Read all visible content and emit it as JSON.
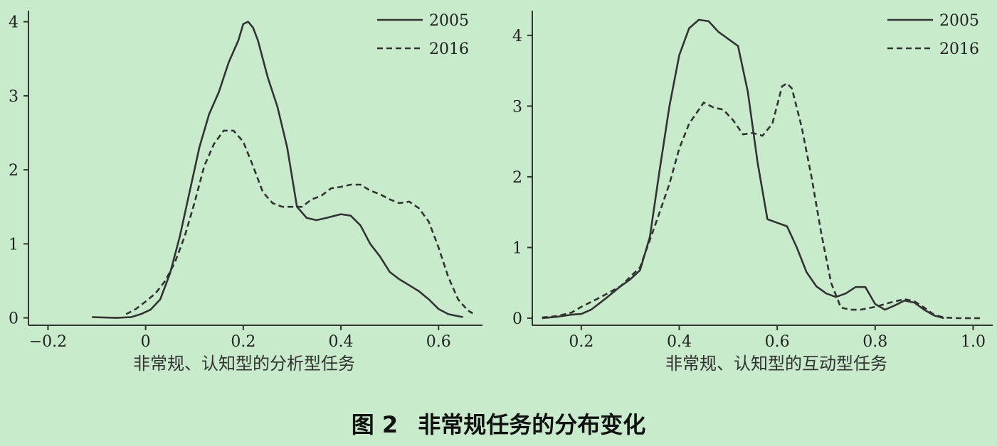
{
  "figure": {
    "caption_num": "图 2",
    "caption_text": "非常规任务的分布变化"
  },
  "chart_data": [
    {
      "type": "line",
      "xlabel": "非常规、认知型的分析型任务",
      "ylabel": "",
      "xlim": [
        -0.24,
        0.69
      ],
      "ylim": [
        -0.1,
        4.15
      ],
      "xticks": [
        -0.2,
        0,
        0.2,
        0.4,
        0.6
      ],
      "xtick_labels": [
        "−0.2",
        "0",
        "0.2",
        "0.4",
        "0.6"
      ],
      "yticks": [
        0,
        1,
        2,
        3,
        4
      ],
      "ytick_labels": [
        "0",
        "1",
        "2",
        "3",
        "4"
      ],
      "legend": "top-right",
      "grid": false,
      "series": [
        {
          "name": "2005",
          "style": "solid",
          "points": [
            [
              -0.11,
              0.01
            ],
            [
              -0.06,
              0.0
            ],
            [
              -0.03,
              0.01
            ],
            [
              -0.01,
              0.05
            ],
            [
              0.01,
              0.11
            ],
            [
              0.03,
              0.25
            ],
            [
              0.05,
              0.6
            ],
            [
              0.07,
              1.1
            ],
            [
              0.09,
              1.7
            ],
            [
              0.11,
              2.3
            ],
            [
              0.13,
              2.75
            ],
            [
              0.15,
              3.05
            ],
            [
              0.17,
              3.45
            ],
            [
              0.19,
              3.75
            ],
            [
              0.2,
              3.97
            ],
            [
              0.21,
              4.0
            ],
            [
              0.22,
              3.92
            ],
            [
              0.23,
              3.75
            ],
            [
              0.25,
              3.25
            ],
            [
              0.27,
              2.85
            ],
            [
              0.29,
              2.3
            ],
            [
              0.31,
              1.5
            ],
            [
              0.33,
              1.35
            ],
            [
              0.35,
              1.32
            ],
            [
              0.37,
              1.35
            ],
            [
              0.4,
              1.4
            ],
            [
              0.42,
              1.38
            ],
            [
              0.44,
              1.25
            ],
            [
              0.46,
              1.0
            ],
            [
              0.48,
              0.83
            ],
            [
              0.5,
              0.62
            ],
            [
              0.52,
              0.52
            ],
            [
              0.54,
              0.44
            ],
            [
              0.56,
              0.36
            ],
            [
              0.58,
              0.25
            ],
            [
              0.6,
              0.12
            ],
            [
              0.62,
              0.05
            ],
            [
              0.65,
              0.01
            ]
          ]
        },
        {
          "name": "2016",
          "style": "dashed",
          "points": [
            [
              -0.04,
              0.05
            ],
            [
              -0.02,
              0.12
            ],
            [
              0.0,
              0.22
            ],
            [
              0.02,
              0.33
            ],
            [
              0.04,
              0.5
            ],
            [
              0.06,
              0.75
            ],
            [
              0.08,
              1.1
            ],
            [
              0.1,
              1.55
            ],
            [
              0.12,
              2.05
            ],
            [
              0.14,
              2.35
            ],
            [
              0.16,
              2.53
            ],
            [
              0.18,
              2.53
            ],
            [
              0.2,
              2.38
            ],
            [
              0.22,
              2.05
            ],
            [
              0.24,
              1.7
            ],
            [
              0.26,
              1.55
            ],
            [
              0.28,
              1.5
            ],
            [
              0.3,
              1.5
            ],
            [
              0.32,
              1.5
            ],
            [
              0.34,
              1.6
            ],
            [
              0.36,
              1.65
            ],
            [
              0.38,
              1.75
            ],
            [
              0.4,
              1.77
            ],
            [
              0.42,
              1.8
            ],
            [
              0.44,
              1.8
            ],
            [
              0.46,
              1.72
            ],
            [
              0.48,
              1.67
            ],
            [
              0.5,
              1.6
            ],
            [
              0.52,
              1.55
            ],
            [
              0.54,
              1.57
            ],
            [
              0.56,
              1.48
            ],
            [
              0.58,
              1.3
            ],
            [
              0.6,
              0.95
            ],
            [
              0.62,
              0.55
            ],
            [
              0.64,
              0.25
            ],
            [
              0.66,
              0.1
            ],
            [
              0.67,
              0.06
            ]
          ]
        }
      ]
    },
    {
      "type": "line",
      "xlabel": "非常规、认知型的互动型任务",
      "ylabel": "",
      "xlim": [
        0.1,
        1.04
      ],
      "ylim": [
        -0.1,
        4.35
      ],
      "xticks": [
        0.2,
        0.4,
        0.6,
        0.8,
        1.0
      ],
      "xtick_labels": [
        "0.2",
        "0.4",
        "0.6",
        "0.8",
        "1.0"
      ],
      "yticks": [
        0,
        1,
        2,
        3,
        4
      ],
      "ytick_labels": [
        "0",
        "1",
        "2",
        "3",
        "4"
      ],
      "legend": "top-right",
      "grid": false,
      "series": [
        {
          "name": "2005",
          "style": "solid",
          "points": [
            [
              0.12,
              0.0
            ],
            [
              0.15,
              0.02
            ],
            [
              0.18,
              0.05
            ],
            [
              0.2,
              0.06
            ],
            [
              0.22,
              0.12
            ],
            [
              0.25,
              0.28
            ],
            [
              0.28,
              0.45
            ],
            [
              0.3,
              0.55
            ],
            [
              0.32,
              0.68
            ],
            [
              0.34,
              1.15
            ],
            [
              0.36,
              2.1
            ],
            [
              0.38,
              3.0
            ],
            [
              0.4,
              3.72
            ],
            [
              0.42,
              4.1
            ],
            [
              0.44,
              4.22
            ],
            [
              0.46,
              4.2
            ],
            [
              0.48,
              4.05
            ],
            [
              0.5,
              3.95
            ],
            [
              0.52,
              3.85
            ],
            [
              0.54,
              3.2
            ],
            [
              0.56,
              2.2
            ],
            [
              0.58,
              1.4
            ],
            [
              0.6,
              1.35
            ],
            [
              0.62,
              1.3
            ],
            [
              0.64,
              1.0
            ],
            [
              0.66,
              0.65
            ],
            [
              0.68,
              0.45
            ],
            [
              0.7,
              0.35
            ],
            [
              0.72,
              0.3
            ],
            [
              0.74,
              0.35
            ],
            [
              0.76,
              0.44
            ],
            [
              0.78,
              0.44
            ],
            [
              0.8,
              0.2
            ],
            [
              0.82,
              0.12
            ],
            [
              0.84,
              0.18
            ],
            [
              0.86,
              0.25
            ],
            [
              0.88,
              0.22
            ],
            [
              0.9,
              0.12
            ],
            [
              0.92,
              0.04
            ],
            [
              0.94,
              0.0
            ]
          ]
        },
        {
          "name": "2016",
          "style": "dashed",
          "points": [
            [
              0.12,
              0.01
            ],
            [
              0.15,
              0.03
            ],
            [
              0.18,
              0.08
            ],
            [
              0.2,
              0.16
            ],
            [
              0.24,
              0.3
            ],
            [
              0.28,
              0.45
            ],
            [
              0.32,
              0.72
            ],
            [
              0.35,
              1.3
            ],
            [
              0.38,
              1.9
            ],
            [
              0.4,
              2.4
            ],
            [
              0.42,
              2.75
            ],
            [
              0.45,
              3.05
            ],
            [
              0.47,
              2.98
            ],
            [
              0.49,
              2.95
            ],
            [
              0.51,
              2.8
            ],
            [
              0.53,
              2.6
            ],
            [
              0.55,
              2.62
            ],
            [
              0.57,
              2.58
            ],
            [
              0.59,
              2.75
            ],
            [
              0.61,
              3.28
            ],
            [
              0.62,
              3.32
            ],
            [
              0.63,
              3.25
            ],
            [
              0.65,
              2.7
            ],
            [
              0.67,
              2.0
            ],
            [
              0.69,
              1.2
            ],
            [
              0.71,
              0.5
            ],
            [
              0.73,
              0.15
            ],
            [
              0.75,
              0.12
            ],
            [
              0.77,
              0.12
            ],
            [
              0.8,
              0.16
            ],
            [
              0.83,
              0.22
            ],
            [
              0.86,
              0.27
            ],
            [
              0.88,
              0.24
            ],
            [
              0.9,
              0.15
            ],
            [
              0.92,
              0.05
            ],
            [
              0.94,
              0.01
            ],
            [
              0.97,
              0.0
            ],
            [
              1.02,
              0.0
            ]
          ]
        }
      ]
    }
  ]
}
